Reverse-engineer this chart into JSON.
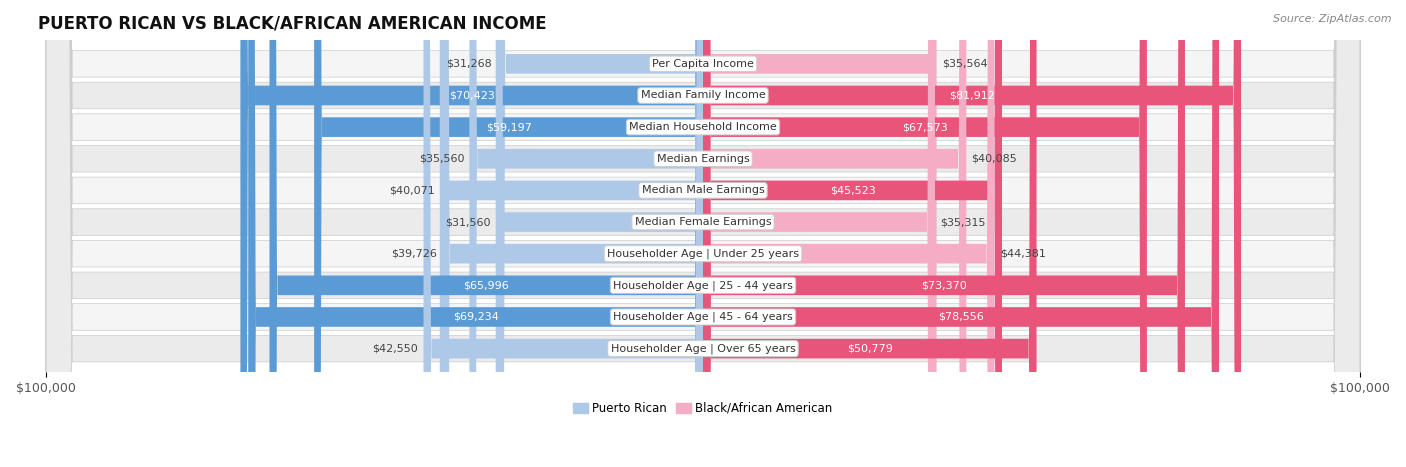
{
  "title": "PUERTO RICAN VS BLACK/AFRICAN AMERICAN INCOME",
  "source": "Source: ZipAtlas.com",
  "max_value": 100000,
  "categories": [
    "Per Capita Income",
    "Median Family Income",
    "Median Household Income",
    "Median Earnings",
    "Median Male Earnings",
    "Median Female Earnings",
    "Householder Age | Under 25 years",
    "Householder Age | 25 - 44 years",
    "Householder Age | 45 - 64 years",
    "Householder Age | Over 65 years"
  ],
  "puerto_rican": [
    31268,
    70423,
    59197,
    35560,
    40071,
    31560,
    39726,
    65996,
    69234,
    42550
  ],
  "black_african": [
    35564,
    81912,
    67573,
    40085,
    45523,
    35315,
    44381,
    73370,
    78556,
    50779
  ],
  "puerto_rican_light": "#aec9e8",
  "puerto_rican_dark": "#5b9bd5",
  "black_african_light": "#f4adc4",
  "black_african_dark": "#e8547a",
  "label_bg": "#ffffff",
  "row_bg_light": "#f5f5f5",
  "row_bg_dark": "#ebebeb",
  "background_color": "#ffffff",
  "title_fontsize": 12,
  "source_fontsize": 8,
  "axis_fontsize": 9,
  "bar_label_fontsize": 8,
  "cat_label_fontsize": 8,
  "legend_fontsize": 8.5,
  "pr_threshold": 45000,
  "ba_threshold": 45000,
  "ylabel_left": "$100,000",
  "ylabel_right": "$100,000",
  "legend_pr": "Puerto Rican",
  "legend_ba": "Black/African American"
}
